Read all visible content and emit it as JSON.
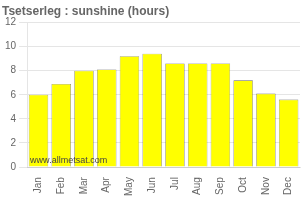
{
  "chart_data": {
    "type": "bar",
    "title": "Tsetserleg : sunshine (hours)",
    "categories": [
      "Jan",
      "Feb",
      "Mar",
      "Apr",
      "May",
      "Jun",
      "Jul",
      "Aug",
      "Sep",
      "Oct",
      "Nov",
      "Dec"
    ],
    "values": [
      6.0,
      6.9,
      8.0,
      8.1,
      9.2,
      9.4,
      8.6,
      8.6,
      8.6,
      7.2,
      6.1,
      5.6
    ],
    "color": "#FFFF00",
    "ylim": [
      0,
      12
    ],
    "yticks": [
      0,
      2,
      4,
      6,
      8,
      10,
      12
    ],
    "grid": true,
    "annotation": "www.allmetsat.com"
  }
}
